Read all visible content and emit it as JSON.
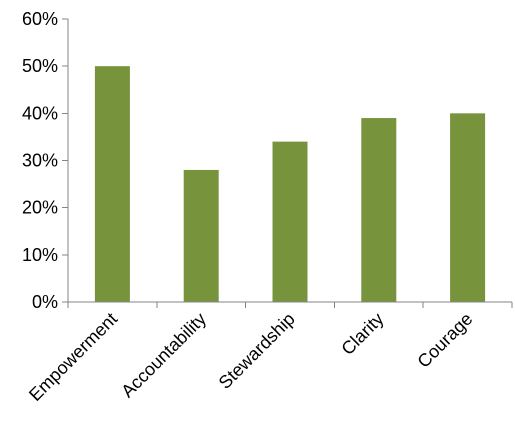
{
  "chart_data": {
    "type": "bar",
    "title": "",
    "xlabel": "",
    "ylabel": "",
    "categories": [
      "Empowerment",
      "Accountability",
      "Stewardship",
      "Clarity",
      "Courage"
    ],
    "values": [
      0.5,
      0.28,
      0.34,
      0.39,
      0.4
    ],
    "ylim": [
      0,
      0.6
    ],
    "y_ticks": [
      {
        "value": 0.0,
        "label": "0%"
      },
      {
        "value": 0.1,
        "label": "10%"
      },
      {
        "value": 0.2,
        "label": "20%"
      },
      {
        "value": 0.3,
        "label": "30%"
      },
      {
        "value": 0.4,
        "label": "40%"
      },
      {
        "value": 0.5,
        "label": "50%"
      },
      {
        "value": 0.6,
        "label": "60%"
      }
    ],
    "grid": false,
    "legend": "none",
    "bar_color": "#77933C",
    "axis_color": "#868686"
  }
}
